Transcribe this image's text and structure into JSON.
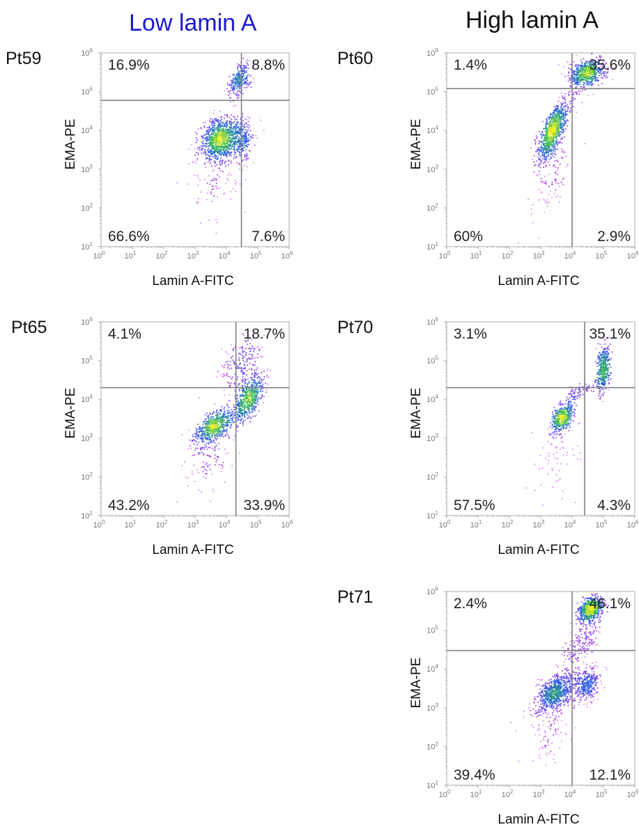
{
  "headings": {
    "low": "Low lamin A",
    "high": "High lamin A"
  },
  "colors": {
    "low_heading": "#1a1ad0",
    "axes": "#aaaaaa",
    "gate": "#808080",
    "density_low": "#cc33ee",
    "density_mid": "#2255ee",
    "density_high": "#33bb55",
    "density_peak": "#eeee22"
  },
  "chart_data": [
    {
      "type": "scatter",
      "id": "Pt59",
      "group": "Low lamin A",
      "xlabel": "Lamin A-FITC",
      "ylabel": "EMA-PE",
      "x_scale": "log",
      "y_scale": "log",
      "xlim": [
        1,
        1000000
      ],
      "ylim": [
        10,
        1000000
      ],
      "x_tick_labels": [
        "10",
        "10",
        "10",
        "10",
        "10",
        "10",
        "10"
      ],
      "x_tick_exponents": [
        "0",
        "1",
        "2",
        "3",
        "4",
        "5",
        "6"
      ],
      "y_tick_labels": [
        "10",
        "10",
        "10",
        "10",
        "10",
        "10"
      ],
      "y_tick_exponents": [
        "1",
        "2",
        "3",
        "4",
        "5",
        "6"
      ],
      "gate": {
        "x": 30000,
        "y": 60000
      },
      "quadrants": {
        "upper_left": "16.9%",
        "upper_right": "8.8%",
        "lower_left": "66.6%",
        "lower_right": "7.6%"
      },
      "populations": [
        {
          "cx": 6000,
          "cy": 6000,
          "sx": 0.3,
          "sy": 0.26,
          "rho": 0.2,
          "n": 900
        },
        {
          "cx": 30000,
          "cy": 6000,
          "sx": 0.18,
          "sy": 0.3,
          "rho": 0.0,
          "n": 250
        },
        {
          "cx": 25000,
          "cy": 200000,
          "sx": 0.18,
          "sy": 0.22,
          "rho": 0.5,
          "n": 250
        },
        {
          "cx": 6000,
          "cy": 600,
          "sx": 0.45,
          "sy": 0.6,
          "rho": 0.3,
          "n": 120
        }
      ]
    },
    {
      "type": "scatter",
      "id": "Pt60",
      "group": "High lamin A",
      "xlabel": "Lamin A-FITC",
      "ylabel": "EMA-PE",
      "x_scale": "log",
      "y_scale": "log",
      "xlim": [
        1,
        1000000
      ],
      "ylim": [
        10,
        1000000
      ],
      "x_tick_labels": [
        "10",
        "10",
        "10",
        "10",
        "10",
        "10",
        "10"
      ],
      "x_tick_exponents": [
        "0",
        "1",
        "2",
        "3",
        "4",
        "5",
        "6"
      ],
      "y_tick_labels": [
        "10",
        "10",
        "10",
        "10",
        "10",
        "10"
      ],
      "y_tick_exponents": [
        "1",
        "2",
        "3",
        "4",
        "5",
        "6"
      ],
      "gate": {
        "x": 10000,
        "y": 120000
      },
      "quadrants": {
        "upper_left": "1.4%",
        "upper_right": "35.6%",
        "lower_left": "60%",
        "lower_right": "2.9%"
      },
      "populations": [
        {
          "cx": 2500,
          "cy": 10000,
          "sx": 0.25,
          "sy": 0.38,
          "rho": 0.75,
          "n": 900
        },
        {
          "cx": 30000,
          "cy": 300000,
          "sx": 0.28,
          "sy": 0.18,
          "rho": 0.3,
          "n": 600
        },
        {
          "cx": 2000,
          "cy": 600,
          "sx": 0.35,
          "sy": 0.6,
          "rho": 0.5,
          "n": 100
        }
      ]
    },
    {
      "type": "scatter",
      "id": "Pt65",
      "group": "Low lamin A",
      "xlabel": "Lamin A-FITC",
      "ylabel": "EMA-PE",
      "x_scale": "log",
      "y_scale": "log",
      "xlim": [
        1,
        1000000
      ],
      "ylim": [
        10,
        1000000
      ],
      "x_tick_labels": [
        "10",
        "10",
        "10",
        "10",
        "10",
        "10",
        "10"
      ],
      "x_tick_exponents": [
        "0",
        "1",
        "2",
        "3",
        "4",
        "5",
        "6"
      ],
      "y_tick_labels": [
        "10",
        "10",
        "10",
        "10",
        "10",
        "10"
      ],
      "y_tick_exponents": [
        "1",
        "2",
        "3",
        "4",
        "5",
        "6"
      ],
      "gate": {
        "x": 20000,
        "y": 20000
      },
      "quadrants": {
        "upper_left": "4.1%",
        "upper_right": "18.7%",
        "lower_left": "43.2%",
        "lower_right": "33.9%"
      },
      "populations": [
        {
          "cx": 4000,
          "cy": 2000,
          "sx": 0.3,
          "sy": 0.22,
          "rho": 0.6,
          "n": 550
        },
        {
          "cx": 50000,
          "cy": 10000,
          "sx": 0.25,
          "sy": 0.3,
          "rho": 0.6,
          "n": 550
        },
        {
          "cx": 30000,
          "cy": 80000,
          "sx": 0.35,
          "sy": 0.35,
          "rho": 0.4,
          "n": 200
        },
        {
          "cx": 3000,
          "cy": 400,
          "sx": 0.4,
          "sy": 0.5,
          "rho": 0.4,
          "n": 120
        }
      ]
    },
    {
      "type": "scatter",
      "id": "Pt70",
      "group": "High lamin A",
      "xlabel": "Lamin A-FITC",
      "ylabel": "EMA-PE",
      "x_scale": "log",
      "y_scale": "log",
      "xlim": [
        1,
        1000000
      ],
      "ylim": [
        10,
        1000000
      ],
      "x_tick_labels": [
        "10",
        "10",
        "10",
        "10",
        "10",
        "10",
        "10"
      ],
      "x_tick_exponents": [
        "0",
        "1",
        "2",
        "3",
        "4",
        "5",
        "6"
      ],
      "y_tick_labels": [
        "10",
        "10",
        "10",
        "10",
        "10",
        "10"
      ],
      "y_tick_exponents": [
        "1",
        "2",
        "3",
        "4",
        "5",
        "6"
      ],
      "gate": {
        "x": 25000,
        "y": 20000
      },
      "quadrants": {
        "upper_left": "3.1%",
        "upper_right": "35.1%",
        "lower_left": "57.5%",
        "lower_right": "4.3%"
      },
      "populations": [
        {
          "cx": 5000,
          "cy": 3500,
          "sx": 0.16,
          "sy": 0.18,
          "rho": 0.4,
          "n": 420
        },
        {
          "cx": 100000,
          "cy": 60000,
          "sx": 0.1,
          "sy": 0.3,
          "rho": 0.2,
          "n": 380
        },
        {
          "cx": 15000,
          "cy": 15000,
          "sx": 0.25,
          "sy": 0.15,
          "rho": 0.7,
          "n": 80
        },
        {
          "cx": 3000,
          "cy": 300,
          "sx": 0.4,
          "sy": 0.55,
          "rho": 0.3,
          "n": 70
        }
      ]
    },
    {
      "type": "scatter",
      "id": "Pt71",
      "group": "High lamin A",
      "xlabel": "Lamin A-FITC",
      "ylabel": "EMA-PE",
      "x_scale": "log",
      "y_scale": "log",
      "xlim": [
        1,
        1000000
      ],
      "ylim": [
        10,
        1000000
      ],
      "x_tick_labels": [
        "10",
        "10",
        "10",
        "10",
        "10",
        "10",
        "10"
      ],
      "x_tick_exponents": [
        "0",
        "1",
        "2",
        "3",
        "4",
        "5",
        "6"
      ],
      "y_tick_labels": [
        "10",
        "10",
        "10",
        "10",
        "10",
        "10"
      ],
      "y_tick_exponents": [
        "1",
        "2",
        "3",
        "4",
        "5",
        "6"
      ],
      "gate": {
        "x": 10000,
        "y": 30000
      },
      "quadrants": {
        "upper_left": "2.4%",
        "upper_right": "46.1%",
        "lower_left": "39.4%",
        "lower_right": "12.1%"
      },
      "populations": [
        {
          "cx": 3000,
          "cy": 2500,
          "sx": 0.32,
          "sy": 0.25,
          "rho": 0.5,
          "n": 700
        },
        {
          "cx": 30000,
          "cy": 4000,
          "sx": 0.2,
          "sy": 0.22,
          "rho": 0.2,
          "n": 300
        },
        {
          "cx": 40000,
          "cy": 350000,
          "sx": 0.18,
          "sy": 0.16,
          "rho": 0.3,
          "n": 650
        },
        {
          "cx": 20000,
          "cy": 50000,
          "sx": 0.3,
          "sy": 0.4,
          "rho": 0.6,
          "n": 200
        },
        {
          "cx": 2000,
          "cy": 300,
          "sx": 0.4,
          "sy": 0.5,
          "rho": 0.4,
          "n": 120
        }
      ]
    }
  ]
}
